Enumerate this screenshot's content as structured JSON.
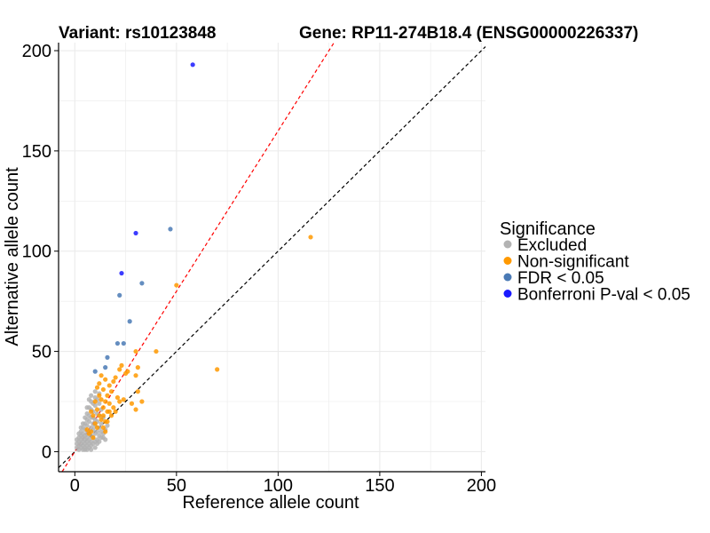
{
  "colors": {
    "excluded": "#b3b3b3",
    "nonsig": "#ff9900",
    "fdr": "#4a7ab5",
    "bonf": "#1a1aff",
    "identity_line": "#000000",
    "fit_line": "#ff0000",
    "grid": "#ebebeb"
  },
  "chart_data": {
    "type": "scatter",
    "title_left": "Variant: rs10123848",
    "title_right": "Gene: RP11-274B18.4 (ENSG00000226337)",
    "xlabel": "Reference allele count",
    "ylabel": "Alternative allele count",
    "xlim": [
      -8,
      202
    ],
    "ylim": [
      -10,
      204
    ],
    "xticks": [
      0,
      50,
      100,
      150,
      200
    ],
    "yticks": [
      0,
      50,
      100,
      150,
      200
    ],
    "xtick_labels": [
      "0",
      "50",
      "100",
      "150",
      "200"
    ],
    "ytick_labels": [
      "0",
      "50",
      "100",
      "150",
      "200"
    ],
    "grid": true,
    "reference_lines": [
      {
        "name": "identity",
        "slope": 1,
        "intercept": 0,
        "style": "dashed",
        "color": "identity_line"
      },
      {
        "name": "fit",
        "slope": 1.6,
        "intercept": 0,
        "style": "dashed",
        "color": "fit_line"
      }
    ],
    "legend": {
      "title": "Significance",
      "placement": "right",
      "entries": [
        {
          "key": "excluded",
          "label": "Excluded"
        },
        {
          "key": "nonsig",
          "label": "Non-significant"
        },
        {
          "key": "fdr",
          "label": "FDR < 0.05"
        },
        {
          "key": "bonf",
          "label": "Bonferroni P-val < 0.05"
        }
      ]
    },
    "series": [
      {
        "name": "Excluded",
        "key": "excluded",
        "points": [
          [
            1,
            2
          ],
          [
            1,
            4
          ],
          [
            2,
            1
          ],
          [
            2,
            3
          ],
          [
            2,
            5
          ],
          [
            2,
            7
          ],
          [
            3,
            2
          ],
          [
            3,
            4
          ],
          [
            3,
            6
          ],
          [
            3,
            8
          ],
          [
            3,
            10
          ],
          [
            4,
            1
          ],
          [
            4,
            3
          ],
          [
            4,
            5
          ],
          [
            4,
            7
          ],
          [
            4,
            9
          ],
          [
            4,
            12
          ],
          [
            5,
            2
          ],
          [
            5,
            4
          ],
          [
            5,
            6
          ],
          [
            5,
            8
          ],
          [
            5,
            11
          ],
          [
            5,
            14
          ],
          [
            6,
            3
          ],
          [
            6,
            5
          ],
          [
            6,
            7
          ],
          [
            6,
            9
          ],
          [
            6,
            13
          ],
          [
            6,
            16
          ],
          [
            6,
            19
          ],
          [
            7,
            2
          ],
          [
            7,
            4
          ],
          [
            7,
            6
          ],
          [
            7,
            10
          ],
          [
            7,
            15
          ],
          [
            7,
            18
          ],
          [
            7,
            22
          ],
          [
            8,
            3
          ],
          [
            8,
            5
          ],
          [
            8,
            8
          ],
          [
            8,
            12
          ],
          [
            8,
            17
          ],
          [
            8,
            21
          ],
          [
            8,
            25
          ],
          [
            8,
            28
          ],
          [
            9,
            4
          ],
          [
            9,
            7
          ],
          [
            9,
            11
          ],
          [
            9,
            14
          ],
          [
            9,
            20
          ],
          [
            9,
            24
          ],
          [
            10,
            5
          ],
          [
            10,
            9
          ],
          [
            10,
            13
          ],
          [
            10,
            16
          ],
          [
            10,
            23
          ],
          [
            10,
            27
          ],
          [
            11,
            6
          ],
          [
            11,
            10
          ],
          [
            11,
            15
          ],
          [
            11,
            19
          ],
          [
            11,
            26
          ],
          [
            12,
            8
          ],
          [
            12,
            12
          ],
          [
            12,
            18
          ],
          [
            12,
            24
          ],
          [
            13,
            7
          ],
          [
            13,
            14
          ],
          [
            13,
            21
          ],
          [
            14,
            9
          ],
          [
            14,
            17
          ],
          [
            15,
            11
          ],
          [
            16,
            13
          ],
          [
            2,
            9
          ],
          [
            1,
            6
          ],
          [
            3,
            12
          ],
          [
            4,
            14
          ],
          [
            5,
            17
          ],
          [
            6,
            22
          ],
          [
            7,
            26
          ],
          [
            9,
            17
          ],
          [
            10,
            30
          ],
          [
            12,
            29
          ],
          [
            13,
            10
          ],
          [
            14,
            7
          ],
          [
            15,
            6
          ],
          [
            5,
            1
          ],
          [
            6,
            1
          ],
          [
            8,
            1
          ],
          [
            10,
            2
          ],
          [
            11,
            4
          ],
          [
            12,
            5
          ]
        ]
      },
      {
        "name": "Non-significant",
        "key": "nonsig",
        "points": [
          [
            116,
            107
          ],
          [
            70,
            41
          ],
          [
            50,
            83
          ],
          [
            40,
            50
          ],
          [
            30,
            50
          ],
          [
            31,
            42
          ],
          [
            30,
            21
          ],
          [
            33,
            25
          ],
          [
            28,
            24
          ],
          [
            30,
            38
          ],
          [
            31,
            30
          ],
          [
            20,
            37
          ],
          [
            19,
            35
          ],
          [
            18,
            30
          ],
          [
            17,
            33
          ],
          [
            15,
            36
          ],
          [
            13,
            38
          ],
          [
            14,
            31
          ],
          [
            12,
            34
          ],
          [
            11,
            32
          ],
          [
            16,
            28
          ],
          [
            15,
            25
          ],
          [
            14,
            22
          ],
          [
            13,
            26
          ],
          [
            12,
            28
          ],
          [
            10,
            25
          ],
          [
            11,
            21
          ],
          [
            15,
            15
          ],
          [
            16,
            20
          ],
          [
            19,
            22
          ],
          [
            18,
            18
          ],
          [
            17,
            24
          ],
          [
            20,
            20
          ],
          [
            21,
            27
          ],
          [
            22,
            25
          ],
          [
            24,
            26
          ],
          [
            22,
            41
          ],
          [
            23,
            43
          ],
          [
            25,
            39
          ],
          [
            26,
            40
          ],
          [
            16,
            15
          ],
          [
            14,
            12
          ],
          [
            12,
            18
          ],
          [
            10,
            14
          ],
          [
            13,
            16
          ],
          [
            8,
            20
          ],
          [
            9,
            18
          ],
          [
            11,
            12
          ],
          [
            9,
            7
          ],
          [
            8,
            10
          ],
          [
            7,
            9
          ],
          [
            6,
            11
          ],
          [
            14,
            18
          ],
          [
            15,
            10
          ],
          [
            17,
            20
          ]
        ]
      },
      {
        "name": "FDR < 0.05",
        "key": "fdr",
        "points": [
          [
            47,
            111
          ],
          [
            33,
            84
          ],
          [
            22,
            78
          ],
          [
            27,
            65
          ],
          [
            21,
            54
          ],
          [
            24,
            54
          ],
          [
            16,
            47
          ],
          [
            10,
            40
          ],
          [
            15,
            42
          ]
        ]
      },
      {
        "name": "Bonferroni P-val < 0.05",
        "key": "bonf",
        "points": [
          [
            58,
            193
          ],
          [
            30,
            109
          ],
          [
            23,
            89
          ]
        ]
      }
    ]
  }
}
